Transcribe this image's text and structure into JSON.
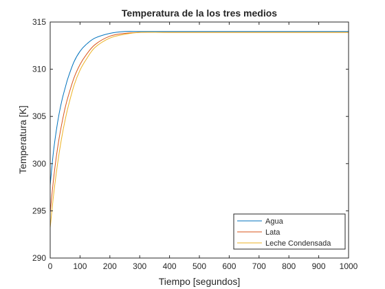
{
  "chart_data": {
    "type": "line",
    "title": "Temperatura de la los tres medios",
    "xlabel": "Tiempo [segundos]",
    "ylabel": "Temperatura [K]",
    "xlim": [
      0,
      1000
    ],
    "ylim": [
      290,
      315
    ],
    "xticks": [
      0,
      100,
      200,
      300,
      400,
      500,
      600,
      700,
      800,
      900,
      1000
    ],
    "yticks": [
      290,
      295,
      300,
      305,
      310,
      315
    ],
    "grid": false,
    "legend_position": "bottom-right",
    "series": [
      {
        "name": "Agua",
        "color": "#0072BD",
        "x": [
          0,
          10,
          20,
          30,
          40,
          50,
          60,
          80,
          100,
          120,
          150,
          200,
          250,
          300,
          400,
          600,
          800,
          1000
        ],
        "y": [
          297.7,
          301.0,
          303.4,
          305.3,
          306.8,
          308.0,
          309.1,
          310.8,
          311.9,
          312.6,
          313.3,
          313.8,
          314.0,
          314.0,
          314.0,
          314.0,
          314.0,
          314.0
        ]
      },
      {
        "name": "Lata",
        "color": "#D95319",
        "x": [
          0,
          10,
          20,
          30,
          40,
          50,
          60,
          80,
          100,
          120,
          150,
          200,
          250,
          300,
          400,
          600,
          800,
          1000
        ],
        "y": [
          294.8,
          298.0,
          300.6,
          302.7,
          304.4,
          305.9,
          307.1,
          309.1,
          310.5,
          311.5,
          312.6,
          313.5,
          313.8,
          313.9,
          313.9,
          313.9,
          313.9,
          313.9
        ]
      },
      {
        "name": "Leche Condensada",
        "color": "#EDB120",
        "x": [
          0,
          10,
          20,
          30,
          40,
          50,
          60,
          80,
          100,
          120,
          150,
          200,
          250,
          300,
          400,
          600,
          800,
          1000
        ],
        "y": [
          293.2,
          296.3,
          298.9,
          301.1,
          303.0,
          304.6,
          306.0,
          308.3,
          309.9,
          311.0,
          312.3,
          313.3,
          313.7,
          313.9,
          313.9,
          313.9,
          313.9,
          313.9
        ]
      }
    ]
  }
}
